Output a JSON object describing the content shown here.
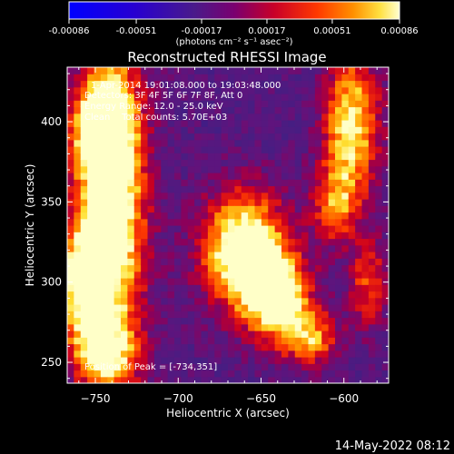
{
  "chart_data": {
    "type": "heatmap",
    "title": "Reconstructed RHESSI Image",
    "xlabel": "Heliocentric X (arcsec)",
    "ylabel": "Heliocentric Y (arcsec)",
    "xlim": [
      -767,
      -573
    ],
    "ylim": [
      237,
      434
    ],
    "xticks": [
      -750,
      -700,
      -650,
      -600
    ],
    "yticks": [
      250,
      300,
      350,
      400
    ],
    "colorbar": {
      "vmin": -0.00086,
      "vmax": 0.00086,
      "tick_values": [
        -0.00086,
        -0.00051,
        -0.00017,
        0.00017,
        0.00051,
        0.00086
      ],
      "tick_labels": [
        "-0.00086",
        "-0.00051",
        "-0.00017",
        "0.00017",
        "0.00051",
        "0.00086"
      ],
      "unit_label": "(photons cm⁻² s⁻¹ asec⁻²)"
    },
    "annotations": [
      "1-Apr-2014 19:01:08.000 to 19:03:48.000",
      "Detectors: 3F 4F 5F 6F 7F 8F, Att 0",
      "Energy Range: 12.0 - 25.0 keV",
      "Clean    Total counts: 5.70E+03"
    ],
    "peak_label": "Position of Peak = [-734,351]",
    "peak": [
      -734,
      351
    ],
    "sources": [
      {
        "x": -740,
        "y": 350,
        "sx": 14,
        "sy": 70,
        "amp": 1.0
      },
      {
        "x": -748,
        "y": 395,
        "sx": 12,
        "sy": 20,
        "amp": 0.7
      },
      {
        "x": -758,
        "y": 300,
        "sx": 10,
        "sy": 25,
        "amp": 0.75
      },
      {
        "x": -745,
        "y": 255,
        "sx": 14,
        "sy": 14,
        "amp": 0.55
      },
      {
        "x": -660,
        "y": 320,
        "sx": 18,
        "sy": 25,
        "amp": 1.0
      },
      {
        "x": -640,
        "y": 290,
        "sx": 14,
        "sy": 18,
        "amp": 0.8
      },
      {
        "x": -620,
        "y": 265,
        "sx": 12,
        "sy": 12,
        "amp": 0.55
      },
      {
        "x": -595,
        "y": 400,
        "sx": 12,
        "sy": 30,
        "amp": 0.75
      },
      {
        "x": -605,
        "y": 350,
        "sx": 10,
        "sy": 18,
        "amp": 0.5
      },
      {
        "x": -585,
        "y": 300,
        "sx": 8,
        "sy": 20,
        "amp": 0.45
      }
    ]
  },
  "footer": {
    "date": "14-May-2022 08:12"
  },
  "colors": {
    "background": "#000000",
    "text": "#ffffff"
  }
}
